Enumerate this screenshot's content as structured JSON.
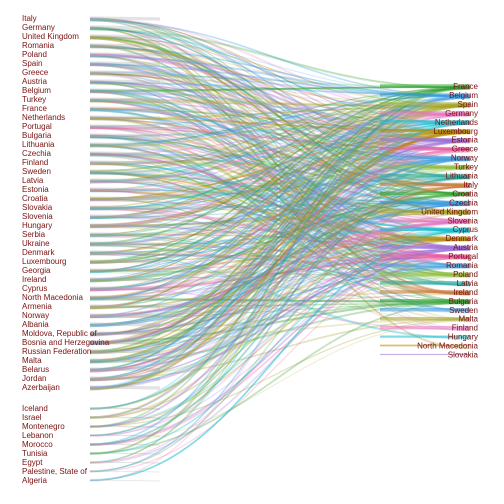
{
  "chart_data": {
    "type": "sankey",
    "title": "",
    "sources": [
      {
        "name": "Italy",
        "weight": 1.3
      },
      {
        "name": "Germany",
        "weight": 1.3
      },
      {
        "name": "United Kingdom",
        "weight": 1.3
      },
      {
        "name": "Romania",
        "weight": 1.3
      },
      {
        "name": "Poland",
        "weight": 1.3
      },
      {
        "name": "Spain",
        "weight": 1.3
      },
      {
        "name": "Greece",
        "weight": 1.3
      },
      {
        "name": "Austria",
        "weight": 1.3
      },
      {
        "name": "Belgium",
        "weight": 1.3
      },
      {
        "name": "Turkey",
        "weight": 1.3
      },
      {
        "name": "France",
        "weight": 1.3
      },
      {
        "name": "Netherlands",
        "weight": 1.3
      },
      {
        "name": "Portugal",
        "weight": 1.3
      },
      {
        "name": "Bulgaria",
        "weight": 1.3
      },
      {
        "name": "Lithuania",
        "weight": 1.3
      },
      {
        "name": "Czechia",
        "weight": 1.3
      },
      {
        "name": "Finland",
        "weight": 1.3
      },
      {
        "name": "Sweden",
        "weight": 1.3
      },
      {
        "name": "Latvia",
        "weight": 1.3
      },
      {
        "name": "Estonia",
        "weight": 1.3
      },
      {
        "name": "Croatia",
        "weight": 1.3
      },
      {
        "name": "Slovakia",
        "weight": 1.3
      },
      {
        "name": "Slovenia",
        "weight": 1.3
      },
      {
        "name": "Hungary",
        "weight": 1.3
      },
      {
        "name": "Serbia",
        "weight": 1.3
      },
      {
        "name": "Ukraine",
        "weight": 1.3
      },
      {
        "name": "Denmark",
        "weight": 1.3
      },
      {
        "name": "Luxembourg",
        "weight": 1.3
      },
      {
        "name": "Georgia",
        "weight": 1.3
      },
      {
        "name": "Ireland",
        "weight": 1.3
      },
      {
        "name": "Cyprus",
        "weight": 1.3
      },
      {
        "name": "North Macedonia",
        "weight": 1.3
      },
      {
        "name": "Armenia",
        "weight": 1.3
      },
      {
        "name": "Norway",
        "weight": 1.3
      },
      {
        "name": "Albania",
        "weight": 1.3
      },
      {
        "name": "Moldova, Republic of",
        "weight": 1.3
      },
      {
        "name": "Bosnia and Herzegovina",
        "weight": 1.3
      },
      {
        "name": "Russian Federation",
        "weight": 1.3
      },
      {
        "name": "Malta",
        "weight": 1.3
      },
      {
        "name": "Belarus",
        "weight": 1.3
      },
      {
        "name": "Jordan",
        "weight": 1.3
      },
      {
        "name": "Azerbaijan",
        "weight": 1.3
      },
      {
        "name": "Iceland",
        "weight": 0.6
      },
      {
        "name": "Israel",
        "weight": 0.6
      },
      {
        "name": "Montenegro",
        "weight": 0.6
      },
      {
        "name": "Lebanon",
        "weight": 0.5
      },
      {
        "name": "Morocco",
        "weight": 0.5
      },
      {
        "name": "Tunisia",
        "weight": 0.4
      },
      {
        "name": "Egypt",
        "weight": 0.4
      },
      {
        "name": "Palestine, State of",
        "weight": 0.3
      },
      {
        "name": "Algeria",
        "weight": 0.3
      }
    ],
    "targets": [
      {
        "name": "France",
        "weight": 1.6
      },
      {
        "name": "Belgium",
        "weight": 1.6
      },
      {
        "name": "Spain",
        "weight": 1.6
      },
      {
        "name": "Germany",
        "weight": 1.6
      },
      {
        "name": "Netherlands",
        "weight": 1.6
      },
      {
        "name": "Luxembourg",
        "weight": 1.6
      },
      {
        "name": "Estonia",
        "weight": 1.6
      },
      {
        "name": "Greece",
        "weight": 1.6
      },
      {
        "name": "Norway",
        "weight": 1.6
      },
      {
        "name": "Turkey",
        "weight": 1.6
      },
      {
        "name": "Lithuania",
        "weight": 1.6
      },
      {
        "name": "Italy",
        "weight": 1.6
      },
      {
        "name": "Croatia",
        "weight": 1.6
      },
      {
        "name": "Czechia",
        "weight": 1.6
      },
      {
        "name": "United Kingdom",
        "weight": 1.6
      },
      {
        "name": "Slovenia",
        "weight": 1.6
      },
      {
        "name": "Cyprus",
        "weight": 1.6
      },
      {
        "name": "Denmark",
        "weight": 1.6
      },
      {
        "name": "Austria",
        "weight": 1.6
      },
      {
        "name": "Portugal",
        "weight": 1.6
      },
      {
        "name": "Romania",
        "weight": 1.6
      },
      {
        "name": "Poland",
        "weight": 1.6
      },
      {
        "name": "Latvia",
        "weight": 1.6
      },
      {
        "name": "Ireland",
        "weight": 1.6
      },
      {
        "name": "Bulgaria",
        "weight": 1.6
      },
      {
        "name": "Sweden",
        "weight": 1.6
      },
      {
        "name": "Malta",
        "weight": 1.6
      },
      {
        "name": "Finland",
        "weight": 1.6
      },
      {
        "name": "Hungary",
        "weight": 1.0
      },
      {
        "name": "North Macedonia",
        "weight": 0.8
      },
      {
        "name": "Slovakia",
        "weight": 0.6
      }
    ],
    "colors": [
      "#2ca02c",
      "#3b9be0",
      "#a5a52a",
      "#e377c2",
      "#17becf",
      "#b38b00",
      "#9a6fd6",
      "#e85aa0",
      "#4aa3df",
      "#8fbf3f",
      "#26a69a",
      "#c97b3a"
    ]
  }
}
